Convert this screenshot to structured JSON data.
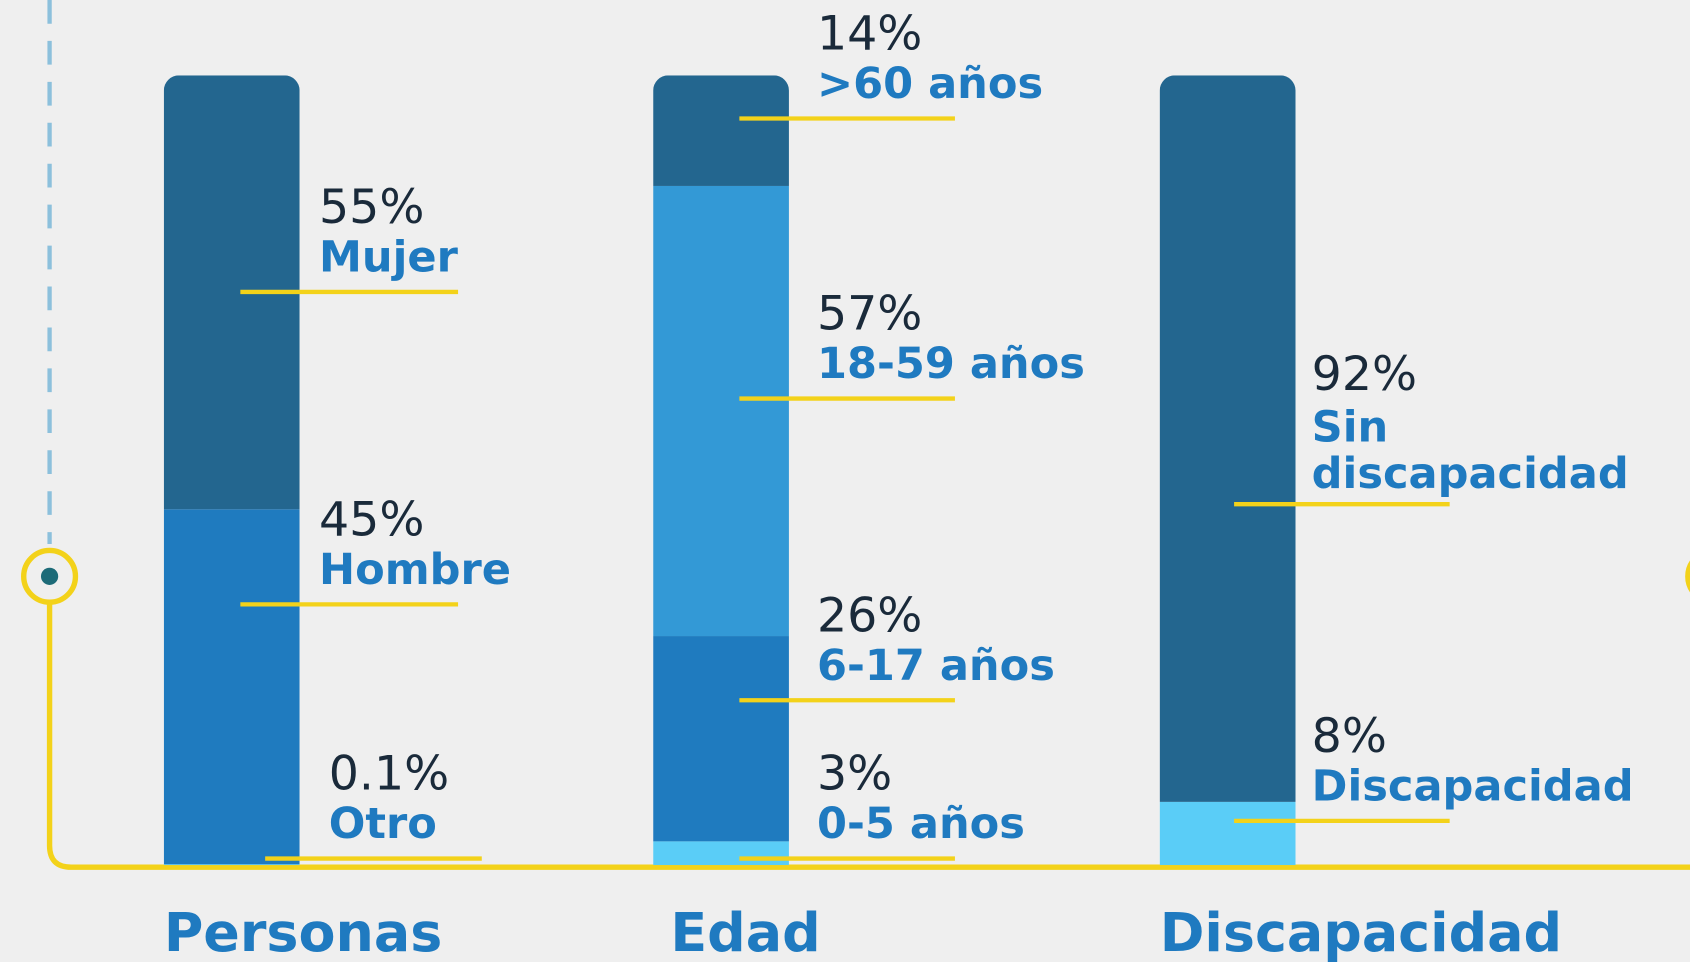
{
  "chart_data": {
    "type": "stacked_bar",
    "bars": [
      {
        "category": "Personas",
        "names": [
          "Mujer",
          "Hombre",
          "Otro"
        ],
        "values": [
          55,
          45,
          0.1
        ],
        "value_labels": [
          "55%",
          "45%",
          "0.1%"
        ],
        "colors": [
          "#23668f",
          "#1f7bbf",
          "#5acdf7"
        ]
      },
      {
        "category": "Edad",
        "names": [
          ">60 años",
          "18-59 años",
          "6-17 años",
          "0-5 años"
        ],
        "values": [
          14,
          57,
          26,
          3
        ],
        "value_labels": [
          "14%",
          "57%",
          "26%",
          "3%"
        ],
        "colors": [
          "#23668f",
          "#3399d6",
          "#1f7bbf",
          "#5acdf7"
        ]
      },
      {
        "category": "Discapacidad",
        "names": [
          "Sin discapacidad",
          "Discapacidad"
        ],
        "values": [
          92,
          8
        ],
        "value_labels": [
          "92%",
          "8%"
        ],
        "colors": [
          "#23668f",
          "#5acdf7"
        ]
      }
    ]
  }
}
